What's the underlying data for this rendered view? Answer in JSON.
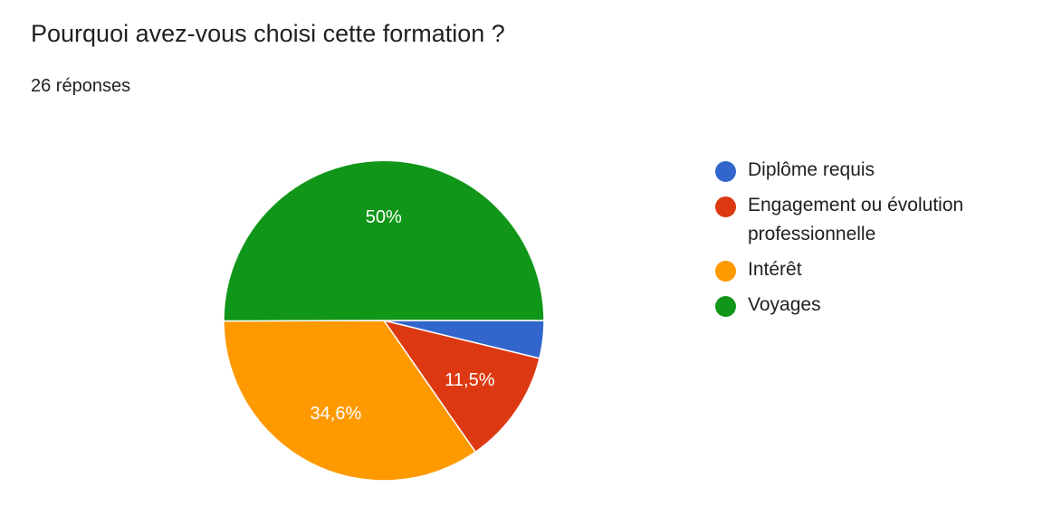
{
  "header": {
    "title": "Pourquoi avez-vous choisi cette formation ?",
    "responses": "26 réponses"
  },
  "chart_data": {
    "type": "pie",
    "title": "Pourquoi avez-vous choisi cette formation ?",
    "slices": [
      {
        "name": "Diplôme requis",
        "value": 3.8,
        "color": "#3366cc",
        "label": ""
      },
      {
        "name": "Engagement ou évolution professionnelle",
        "value": 11.5,
        "color": "#dc3912",
        "label": "11,5%"
      },
      {
        "name": "Intérêt",
        "value": 34.6,
        "color": "#ff9900",
        "label": "34,6%"
      },
      {
        "name": "Voyages",
        "value": 50,
        "color": "#109618",
        "label": "50%"
      }
    ],
    "legend_position": "right"
  }
}
